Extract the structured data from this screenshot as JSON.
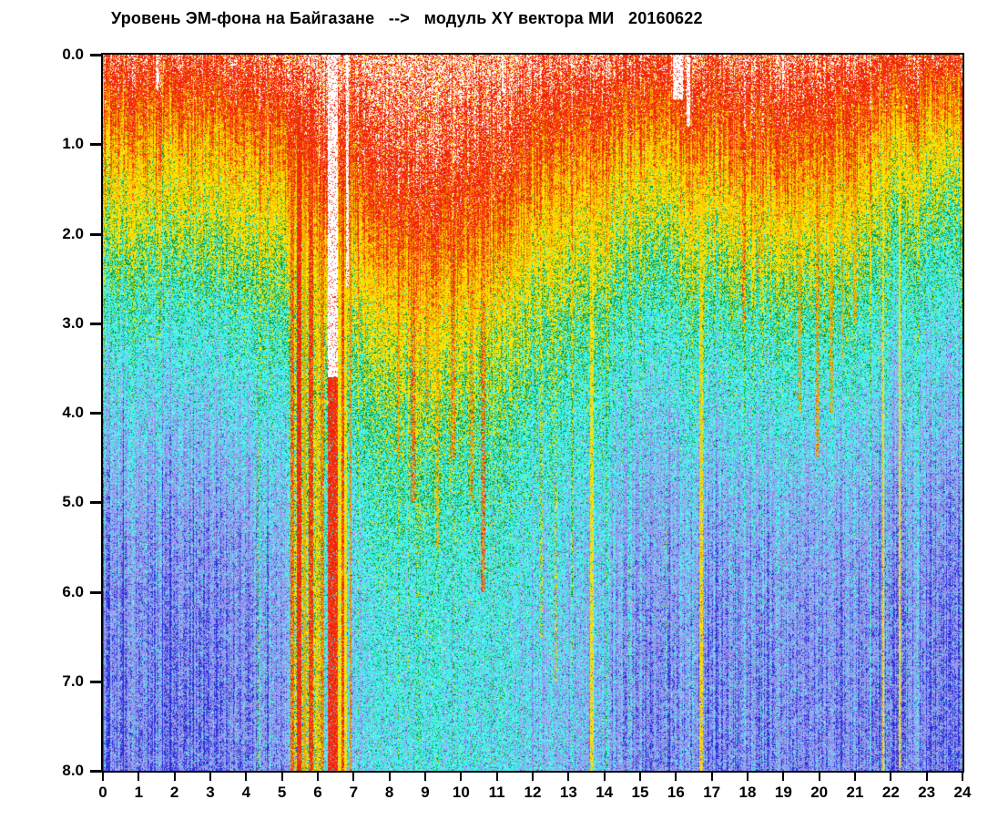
{
  "chart_data": {
    "type": "heatmap",
    "title": "Уровень ЭМ-фона на Байгазане   -->   модуль XY вектора МИ   20160622",
    "station": "Байгазане",
    "quantity": "модуль XY вектора МИ",
    "date": "20160622",
    "x_range": [
      0,
      24
    ],
    "y_range": [
      0,
      8
    ],
    "y_axis_inverted": true,
    "x_tick_labels": [
      "0",
      "1",
      "2",
      "3",
      "4",
      "5",
      "6",
      "7",
      "8",
      "9",
      "10",
      "11",
      "12",
      "13",
      "14",
      "15",
      "16",
      "17",
      "18",
      "19",
      "20",
      "21",
      "22",
      "23",
      "24"
    ],
    "y_tick_labels": [
      "0.0",
      "1.0",
      "2.0",
      "3.0",
      "4.0",
      "5.0",
      "6.0",
      "7.0",
      "8.0"
    ],
    "grid_on": false,
    "legend": null,
    "palette": {
      "white": "#ffffff",
      "red": "#ee2008",
      "red2": "#fa4416",
      "orange": "#ff9c00",
      "ochre": "#dcae00",
      "yellow": "#ffe400",
      "yellow2": "#ffc800",
      "green": "#0e9628",
      "cyan": "#3cf0ea",
      "cyan_pale": "#a8f6f2",
      "cyan_light": "#7de0f2",
      "periwinkle": "#9a98ee",
      "periwinkle_dark": "#8886e0",
      "blue": "#2c2cd8"
    },
    "colormap": [
      {
        "min": 102,
        "mix": [
          [
            "white",
            0.52
          ],
          [
            "red",
            0.36
          ],
          [
            "yellow",
            0.12
          ]
        ]
      },
      {
        "min": 88,
        "mix": [
          [
            "red",
            0.62
          ],
          [
            "red2",
            0.38
          ]
        ]
      },
      {
        "min": 82,
        "mix": [
          [
            "orange",
            0.5
          ],
          [
            "ochre",
            0.5
          ]
        ]
      },
      {
        "min": 71,
        "mix": [
          [
            "yellow",
            0.88
          ],
          [
            "yellow2",
            0.12
          ]
        ]
      },
      {
        "min": 63,
        "mix": [
          [
            "yellow",
            0.46
          ],
          [
            "green",
            0.38
          ],
          [
            "cyan",
            0.16
          ]
        ]
      },
      {
        "min": 55,
        "mix": [
          [
            "green",
            0.34
          ],
          [
            "cyan",
            0.56
          ],
          [
            "yellow",
            0.1
          ]
        ]
      },
      {
        "min": 43,
        "mix": [
          [
            "cyan",
            0.84
          ],
          [
            "green",
            0.07
          ],
          [
            "cyan_pale",
            0.09
          ]
        ]
      },
      {
        "min": 35,
        "mix": [
          [
            "cyan_light",
            0.48
          ],
          [
            "periwinkle",
            0.48
          ],
          [
            "blue",
            0.04
          ]
        ]
      },
      {
        "min": 24,
        "mix": [
          [
            "periwinkle",
            0.51
          ],
          [
            "periwinkle_dark",
            0.38
          ],
          [
            "cyan",
            0.06
          ],
          [
            "blue",
            0.05
          ]
        ]
      },
      {
        "min": -999,
        "mix": [
          [
            "blue",
            1
          ]
        ]
      }
    ],
    "grid_hours": [
      0,
      1,
      2,
      3,
      4,
      5,
      6,
      7,
      8,
      9,
      10,
      11,
      12,
      13,
      14,
      15,
      16,
      17,
      18,
      19,
      20,
      21,
      22,
      23,
      24
    ],
    "grid_depths": [
      0,
      0.5,
      1,
      1.5,
      2,
      2.5,
      3,
      4,
      5,
      6,
      7,
      8
    ],
    "intensity_grid": [
      [
        103,
        92,
        83,
        76,
        68,
        60,
        52,
        42,
        35,
        30,
        29,
        28
      ],
      [
        103,
        92,
        83,
        76,
        68,
        60,
        52,
        42,
        35,
        30,
        29,
        28
      ],
      [
        103,
        92,
        83,
        76,
        68,
        60,
        52,
        42,
        34,
        30,
        28,
        28
      ],
      [
        103,
        92,
        83,
        76,
        68,
        60,
        52,
        42,
        34,
        30,
        28,
        28
      ],
      [
        104,
        93,
        84,
        77,
        69,
        61,
        53,
        43,
        35,
        30,
        29,
        28
      ],
      [
        106,
        96,
        88,
        81,
        74,
        67,
        59,
        49,
        41,
        36,
        34,
        33
      ],
      [
        108,
        100,
        93,
        86,
        79,
        72,
        64,
        54,
        46,
        41,
        38,
        37
      ],
      [
        111,
        102,
        96,
        89,
        83,
        76,
        68,
        58,
        50,
        45,
        43,
        42
      ],
      [
        114,
        106,
        100,
        94,
        88,
        81,
        73,
        62,
        53,
        48,
        46,
        45
      ],
      [
        115,
        107,
        102,
        96,
        90,
        84,
        76,
        65,
        56,
        50,
        48,
        47
      ],
      [
        115,
        107,
        102,
        96,
        90,
        84,
        76,
        65,
        56,
        50,
        48,
        47
      ],
      [
        112,
        104,
        98,
        92,
        86,
        79,
        71,
        61,
        53,
        48,
        46,
        45
      ],
      [
        110,
        101,
        94,
        88,
        81,
        74,
        67,
        57,
        50,
        46,
        44,
        43
      ],
      [
        108,
        98,
        91,
        84,
        77,
        70,
        63,
        54,
        47,
        43,
        41,
        40
      ],
      [
        106,
        95,
        87,
        79,
        72,
        65,
        58,
        49,
        43,
        39,
        37,
        36
      ],
      [
        105,
        94,
        86,
        77,
        69,
        62,
        55,
        46,
        39,
        35,
        33,
        32
      ],
      [
        105,
        94,
        86,
        77,
        69,
        62,
        54,
        45,
        38,
        34,
        32,
        31
      ],
      [
        106,
        96,
        88,
        80,
        72,
        64,
        56,
        46,
        38,
        33,
        31,
        30
      ],
      [
        107,
        97,
        90,
        82,
        74,
        66,
        57,
        47,
        38,
        33,
        31,
        30
      ],
      [
        107,
        98,
        91,
        83,
        75,
        67,
        58,
        47,
        38,
        33,
        31,
        30
      ],
      [
        106,
        97,
        90,
        83,
        75,
        67,
        58,
        47,
        38,
        33,
        31,
        30
      ],
      [
        104,
        94,
        87,
        80,
        72,
        64,
        56,
        45,
        37,
        32,
        30,
        29
      ],
      [
        101,
        89,
        79,
        70,
        62,
        55,
        49,
        41,
        34,
        30,
        29,
        28
      ],
      [
        100,
        87,
        77,
        68,
        60,
        53,
        47,
        39,
        33,
        29,
        28,
        27
      ],
      [
        100,
        87,
        77,
        68,
        60,
        53,
        47,
        39,
        33,
        29,
        28,
        27
      ]
    ],
    "events": [
      {
        "t": 1.52,
        "w": 0.05,
        "d0": 0,
        "d1": 0.4,
        "gap": true
      },
      {
        "t": 4.32,
        "w": 0.06,
        "d0": 0,
        "d1": 8,
        "f": 62,
        "p": 0.75
      },
      {
        "t": 4.55,
        "w": 0.05,
        "d0": 0,
        "d1": 6,
        "f": 50,
        "p": 0.5
      },
      {
        "t": 5.7,
        "w": 0.95,
        "d0": 0,
        "d1": 8,
        "f": 70,
        "p": 0.8
      },
      {
        "t": 5.3,
        "w": 0.1,
        "d0": 0,
        "d1": 8,
        "f": 88,
        "p": 0.9
      },
      {
        "t": 5.47,
        "w": 0.12,
        "d0": 0,
        "d1": 8,
        "f": 92,
        "p": 0.95
      },
      {
        "t": 5.63,
        "w": 0.07,
        "d0": 0,
        "d1": 8,
        "f": 85,
        "p": 0.8
      },
      {
        "t": 5.8,
        "w": 0.13,
        "d0": 0,
        "d1": 8,
        "f": 90,
        "p": 0.9
      },
      {
        "t": 5.99,
        "w": 0.07,
        "d0": 0,
        "d1": 8,
        "f": 82,
        "p": 0.7
      },
      {
        "t": 6.13,
        "w": 0.09,
        "d0": 0,
        "d1": 8,
        "f": 87,
        "p": 0.85
      },
      {
        "t": 6.42,
        "w": 0.26,
        "d0": 0,
        "d1": 3.6,
        "gap": true
      },
      {
        "t": 6.42,
        "w": 0.26,
        "d0": 3.6,
        "d1": 8,
        "f": 92,
        "p": 0.9
      },
      {
        "t": 6.66,
        "w": 0.3,
        "d0": 0,
        "d1": 8,
        "f": 74,
        "p": 0.85
      },
      {
        "t": 6.7,
        "w": 0.09,
        "d0": 0,
        "d1": 8,
        "f": 90,
        "p": 0.85
      },
      {
        "t": 6.82,
        "w": 0.07,
        "d0": 0,
        "d1": 2.6,
        "gap": true
      },
      {
        "t": 6.92,
        "w": 0.06,
        "d0": 0,
        "d1": 8,
        "f": 86,
        "p": 0.8
      },
      {
        "t": 8.25,
        "w": 0.1,
        "d0": 0,
        "d1": 4.5,
        "f": 86,
        "p": 0.6
      },
      {
        "t": 8.65,
        "w": 0.12,
        "d0": 0,
        "d1": 5,
        "f": 88,
        "p": 0.65
      },
      {
        "t": 9.05,
        "w": 0.1,
        "d0": 0,
        "d1": 4,
        "f": 86,
        "p": 0.6
      },
      {
        "t": 9.35,
        "w": 0.08,
        "d0": 0,
        "d1": 5.5,
        "f": 84,
        "p": 0.55
      },
      {
        "t": 9.78,
        "w": 0.12,
        "d0": 0,
        "d1": 4.5,
        "f": 87,
        "p": 0.6
      },
      {
        "t": 10.3,
        "w": 0.1,
        "d0": 0,
        "d1": 5,
        "f": 86,
        "p": 0.55
      },
      {
        "t": 10.62,
        "w": 0.12,
        "d0": 0,
        "d1": 6,
        "f": 88,
        "p": 0.65
      },
      {
        "t": 11.15,
        "w": 0.05,
        "d0": 0,
        "d1": 0.4,
        "gap": true
      },
      {
        "t": 12.25,
        "w": 0.08,
        "d0": 0,
        "d1": 6.5,
        "f": 70,
        "p": 0.55
      },
      {
        "t": 12.65,
        "w": 0.08,
        "d0": 0,
        "d1": 7,
        "f": 70,
        "p": 0.5
      },
      {
        "t": 13.1,
        "w": 0.07,
        "d0": 0,
        "d1": 6,
        "f": 68,
        "p": 0.5
      },
      {
        "t": 13.65,
        "w": 0.1,
        "d0": 0,
        "d1": 8,
        "f": 78,
        "p": 0.8
      },
      {
        "t": 14.05,
        "w": 0.05,
        "d0": 0,
        "d1": 8,
        "f": 58,
        "p": 0.45
      },
      {
        "t": 14.7,
        "w": 0.05,
        "d0": 0,
        "d1": 8,
        "f": 56,
        "p": 0.4
      },
      {
        "t": 15.7,
        "w": 0.05,
        "d0": 0,
        "d1": 8,
        "f": 56,
        "p": 0.4
      },
      {
        "t": 16.05,
        "w": 0.28,
        "d0": 0,
        "d1": 0.5,
        "gap": true
      },
      {
        "t": 16.35,
        "w": 0.12,
        "d0": 0,
        "d1": 0.8,
        "gap": true
      },
      {
        "t": 16.7,
        "w": 0.1,
        "d0": 0,
        "d1": 8,
        "f": 80,
        "p": 0.8
      },
      {
        "t": 17.9,
        "w": 0.08,
        "d0": 0,
        "d1": 3,
        "f": 88,
        "p": 0.55
      },
      {
        "t": 18.3,
        "w": 0.07,
        "d0": 0,
        "d1": 2.5,
        "f": 86,
        "p": 0.5
      },
      {
        "t": 19.0,
        "w": 0.05,
        "d0": 0,
        "d1": 0.4,
        "gap": true
      },
      {
        "t": 19.45,
        "w": 0.1,
        "d0": 0,
        "d1": 4,
        "f": 85,
        "p": 0.55
      },
      {
        "t": 19.95,
        "w": 0.1,
        "d0": 0,
        "d1": 4.5,
        "f": 86,
        "p": 0.6
      },
      {
        "t": 20.35,
        "w": 0.1,
        "d0": 0,
        "d1": 4,
        "f": 85,
        "p": 0.55
      },
      {
        "t": 20.65,
        "w": 0.08,
        "d0": 0,
        "d1": 3.5,
        "f": 84,
        "p": 0.5
      },
      {
        "t": 21.0,
        "w": 0.08,
        "d0": 0,
        "d1": 3,
        "f": 84,
        "p": 0.5
      },
      {
        "t": 21.78,
        "w": 0.05,
        "d0": 0,
        "d1": 8,
        "f": 74,
        "p": 0.85
      },
      {
        "t": 22.25,
        "w": 0.05,
        "d0": 0,
        "d1": 8,
        "f": 76,
        "p": 0.9
      }
    ],
    "render": {
      "seed": 20160622,
      "pixel_noise": 8,
      "column_noise": 7,
      "gap_red_p": 0.12
    }
  }
}
